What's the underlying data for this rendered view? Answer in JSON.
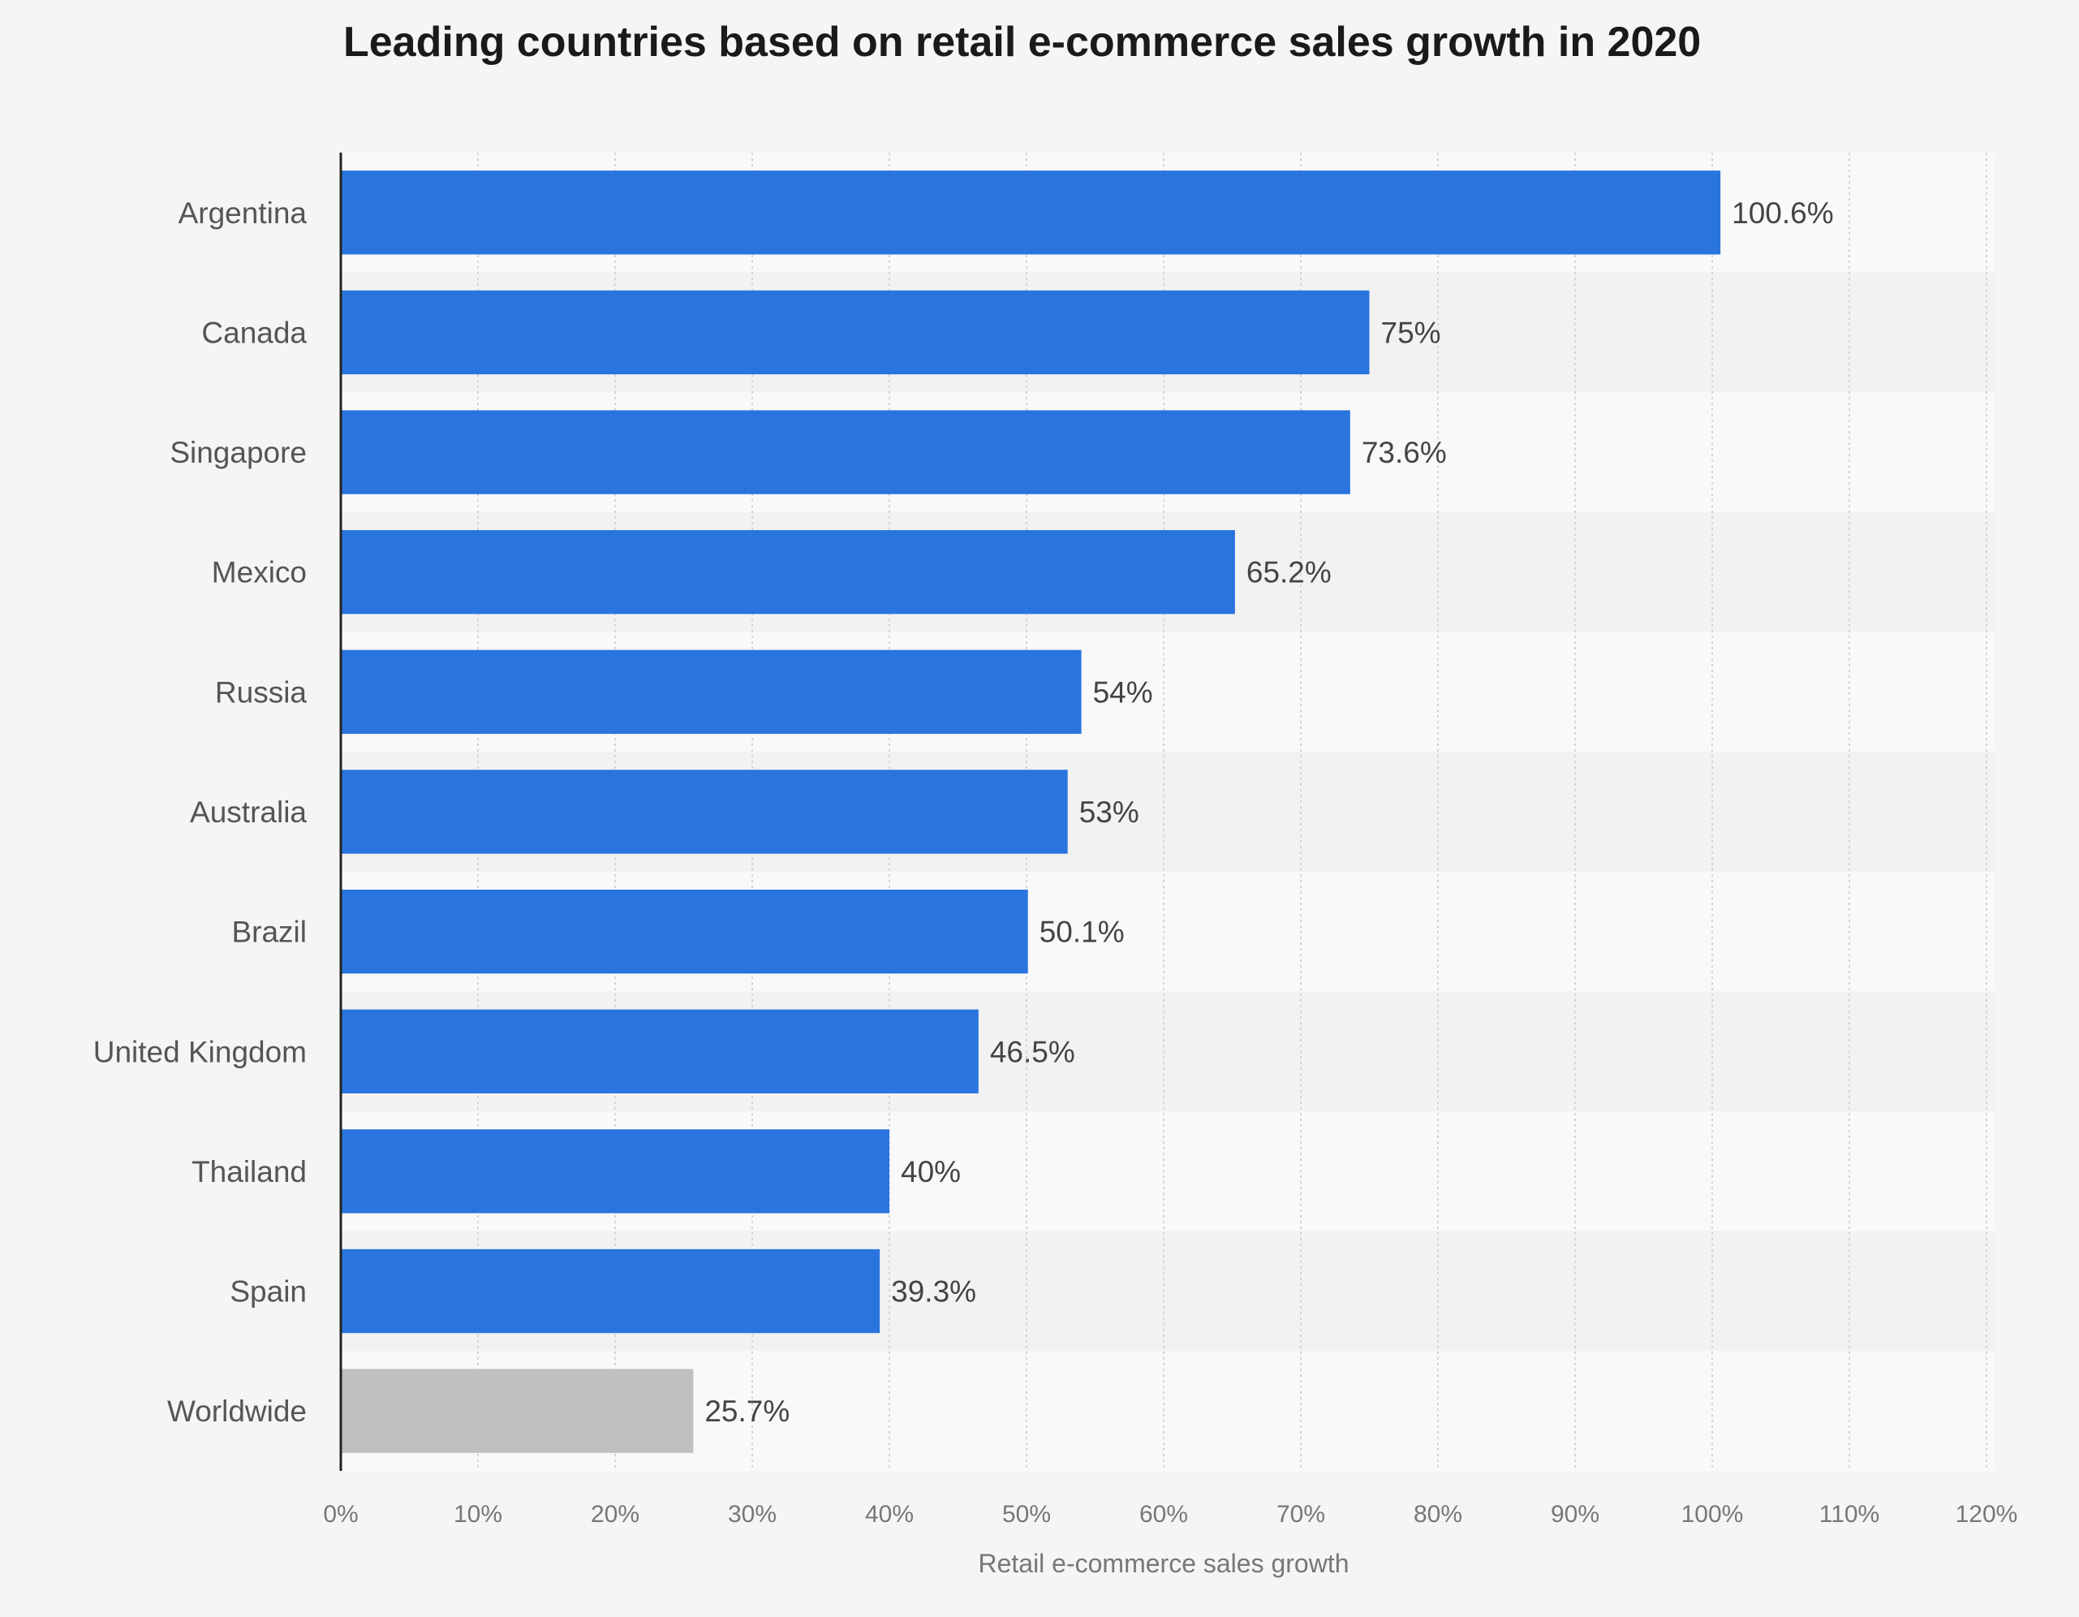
{
  "chart_data": {
    "type": "bar",
    "orientation": "horizontal",
    "title": "Leading countries based on retail e-commerce sales growth in 2020",
    "xlabel": "Retail e-commerce sales growth",
    "ylabel": "",
    "xlim": [
      0,
      120
    ],
    "ticks": [
      "0%",
      "10%",
      "20%",
      "30%",
      "40%",
      "50%",
      "60%",
      "70%",
      "80%",
      "90%",
      "100%",
      "110%",
      "120%"
    ],
    "grid": true,
    "categories": [
      "Argentina",
      "Canada",
      "Singapore",
      "Mexico",
      "Russia",
      "Australia",
      "Brazil",
      "United Kingdom",
      "Thailand",
      "Spain",
      "Worldwide"
    ],
    "values": [
      100.6,
      75,
      73.6,
      65.2,
      54,
      53,
      50.1,
      46.5,
      40,
      39.3,
      25.7
    ],
    "value_labels": [
      "100.6%",
      "75%",
      "73.6%",
      "65.2%",
      "54%",
      "53%",
      "50.1%",
      "46.5%",
      "40%",
      "39.3%",
      "25.7%"
    ],
    "colors": {
      "bar": "#2a74de",
      "highlight_bar": "#c0c0c0",
      "highlight_category": "Worldwide",
      "band_light": "#f9f9f9",
      "band_dark": "#f2f2f2",
      "grid": "#d4d4d4",
      "axis": "#222222"
    }
  }
}
